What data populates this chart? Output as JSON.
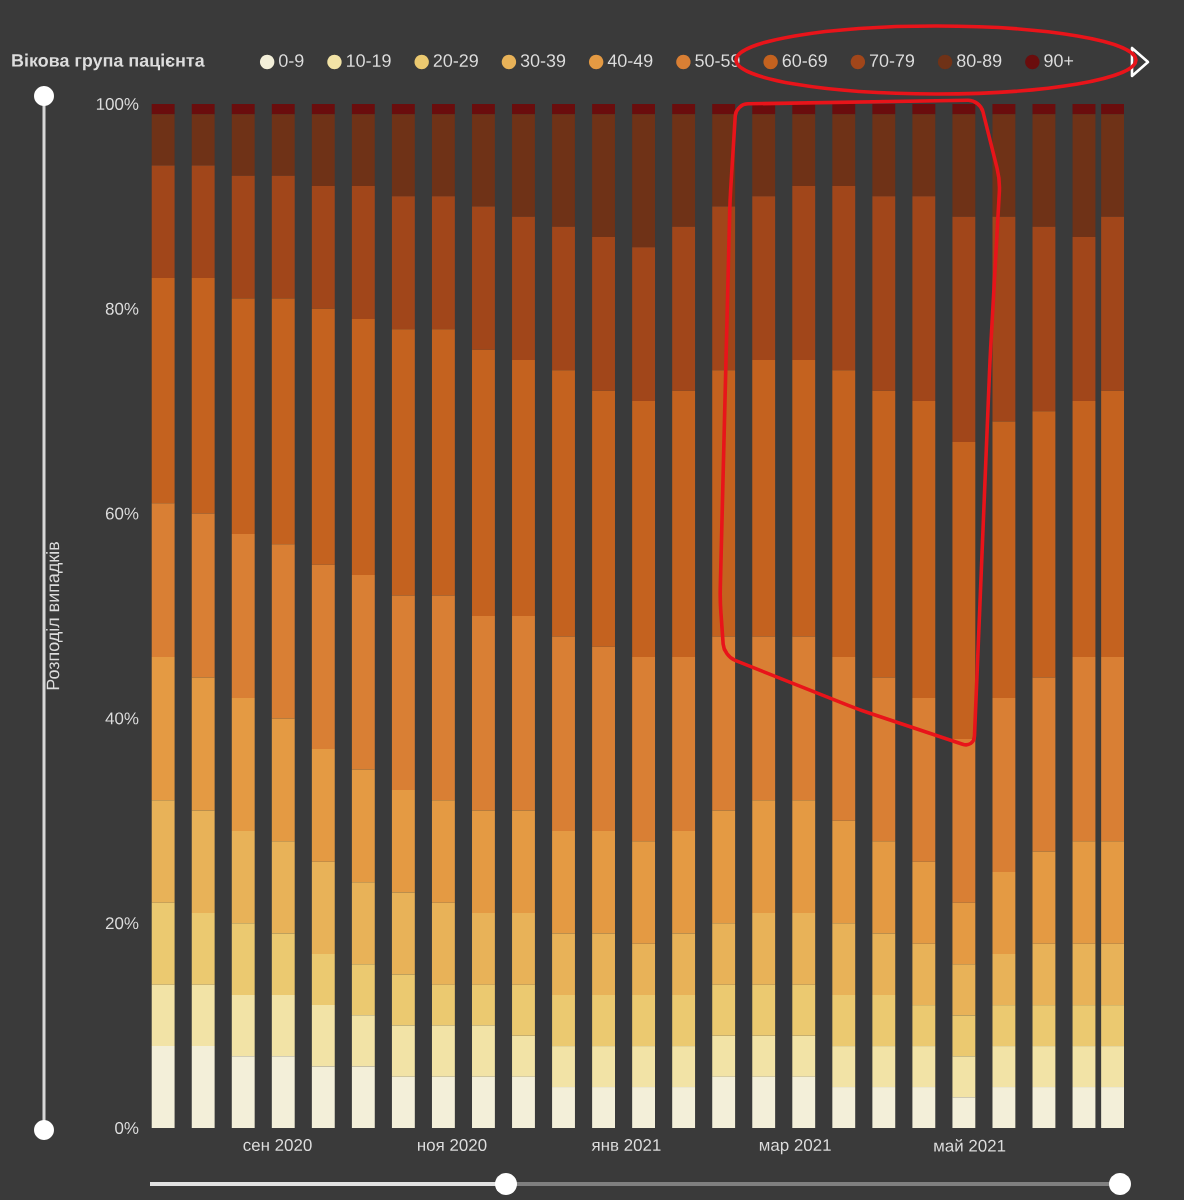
{
  "chart_data": {
    "type": "bar",
    "stacked": true,
    "x": [
      "2020-07-23",
      "2020-08-06",
      "2020-08-20",
      "2020-09-03",
      "2020-09-17",
      "2020-10-01",
      "2020-10-15",
      "2020-10-29",
      "2020-11-12",
      "2020-11-26",
      "2020-12-10",
      "2020-12-24",
      "2021-01-07",
      "2021-01-21",
      "2021-02-04",
      "2021-02-18",
      "2021-03-04",
      "2021-03-18",
      "2021-04-01",
      "2021-04-15",
      "2021-04-29",
      "2021-05-13",
      "2021-05-27",
      "2021-06-10",
      "2021-06-20"
    ],
    "ylabel": "Розподіл випадків",
    "legend_title": "Вікова група пацієнта",
    "legend": "top",
    "xlim": [
      "2020-07-17",
      "2021-06-24"
    ],
    "xticks": [
      {
        "value": "2020-09-01",
        "label": "сен 2020"
      },
      {
        "value": "2020-11-01",
        "label": "ноя 2020"
      },
      {
        "value": "2021-01-01",
        "label": "янв 2021"
      },
      {
        "value": "2021-03-01",
        "label": "мар 2021"
      },
      {
        "value": "2021-05-01",
        "label": "май 2021"
      }
    ],
    "ylim": [
      0,
      100
    ],
    "yticks": [
      {
        "value": 0,
        "label": "0%"
      },
      {
        "value": 20,
        "label": "20%"
      },
      {
        "value": 40,
        "label": "40%"
      },
      {
        "value": 60,
        "label": "60%"
      },
      {
        "value": 80,
        "label": "80%"
      },
      {
        "value": 100,
        "label": "100%"
      }
    ],
    "series": [
      {
        "name": "0-9",
        "color": "#f3efd9",
        "values": [
          8,
          8,
          7,
          7,
          6,
          6,
          5,
          5,
          5,
          5,
          4,
          4,
          4,
          4,
          5,
          5,
          5,
          4,
          4,
          4,
          3,
          4,
          4,
          4,
          4
        ]
      },
      {
        "name": "10-19",
        "color": "#f2e3a6",
        "values": [
          6,
          6,
          6,
          6,
          6,
          5,
          5,
          5,
          5,
          4,
          4,
          4,
          4,
          4,
          4,
          4,
          4,
          4,
          4,
          4,
          4,
          4,
          4,
          4,
          4
        ]
      },
      {
        "name": "20-29",
        "color": "#ebc970",
        "values": [
          8,
          7,
          7,
          6,
          5,
          5,
          5,
          4,
          4,
          5,
          5,
          5,
          5,
          5,
          5,
          5,
          5,
          5,
          5,
          4,
          4,
          4,
          4,
          4,
          4
        ]
      },
      {
        "name": "30-39",
        "color": "#e8b258",
        "values": [
          10,
          10,
          9,
          9,
          9,
          8,
          8,
          8,
          7,
          7,
          6,
          6,
          5,
          6,
          6,
          7,
          7,
          7,
          6,
          6,
          5,
          5,
          6,
          6,
          6
        ]
      },
      {
        "name": "40-49",
        "color": "#e49a43",
        "values": [
          14,
          13,
          13,
          12,
          11,
          11,
          10,
          10,
          10,
          10,
          10,
          10,
          10,
          10,
          11,
          11,
          11,
          10,
          9,
          8,
          6,
          8,
          9,
          10,
          10
        ]
      },
      {
        "name": "50-59",
        "color": "#d97f34",
        "values": [
          15,
          16,
          16,
          17,
          18,
          19,
          19,
          20,
          19,
          19,
          19,
          18,
          18,
          17,
          17,
          16,
          16,
          16,
          16,
          16,
          16,
          17,
          17,
          18,
          18
        ]
      },
      {
        "name": "60-69",
        "color": "#c4621f",
        "values": [
          22,
          23,
          23,
          24,
          25,
          25,
          26,
          26,
          26,
          25,
          26,
          25,
          25,
          26,
          26,
          27,
          27,
          28,
          28,
          29,
          29,
          27,
          26,
          25,
          26
        ]
      },
      {
        "name": "70-79",
        "color": "#a1461a",
        "values": [
          11,
          11,
          12,
          12,
          12,
          13,
          13,
          13,
          14,
          14,
          14,
          15,
          15,
          16,
          16,
          16,
          17,
          18,
          19,
          20,
          22,
          20,
          18,
          16,
          17
        ]
      },
      {
        "name": "80-89",
        "color": "#6f3217",
        "values": [
          5,
          5,
          6,
          6,
          7,
          7,
          8,
          8,
          9,
          10,
          11,
          12,
          13,
          11,
          9,
          8,
          7,
          7,
          8,
          8,
          10,
          10,
          11,
          12,
          10
        ]
      },
      {
        "name": "90+",
        "color": "#6a0d0d",
        "values": [
          1,
          1,
          1,
          1,
          1,
          1,
          1,
          1,
          1,
          1,
          1,
          1,
          1,
          1,
          1,
          1,
          1,
          1,
          1,
          1,
          1,
          1,
          1,
          1,
          1
        ]
      }
    ]
  }
}
